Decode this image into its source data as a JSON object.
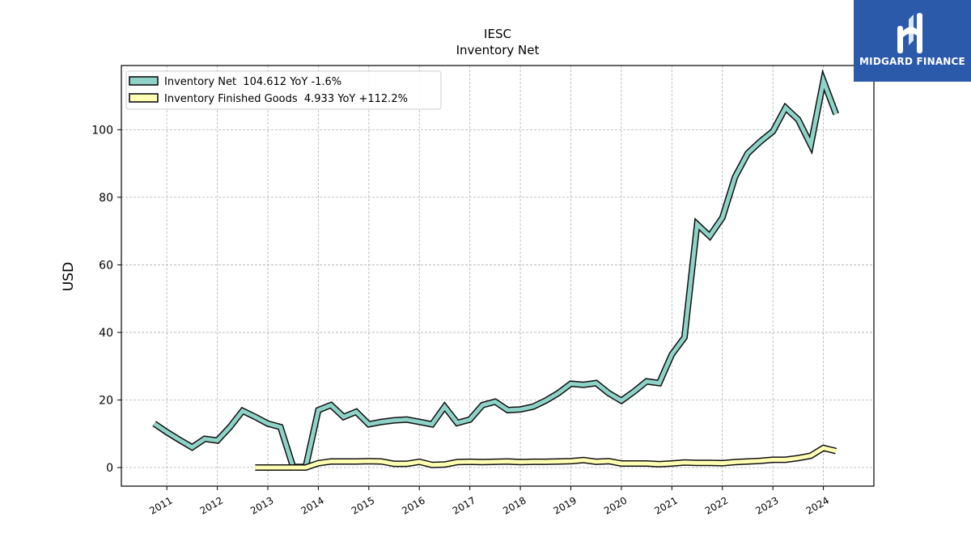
{
  "chart_data": {
    "type": "line",
    "title": "IESC",
    "subtitle": "Inventory Net",
    "ylabel": "USD",
    "xlabel": "",
    "ylim": [
      -5.5,
      119
    ],
    "xlim": [
      2010.1,
      2025.0
    ],
    "yticks": [
      0,
      20,
      40,
      60,
      80,
      100
    ],
    "xticks": [
      "2011",
      "2012",
      "2013",
      "2014",
      "2015",
      "2016",
      "2017",
      "2018",
      "2019",
      "2020",
      "2021",
      "2022",
      "2023",
      "2024"
    ],
    "grid": true,
    "legend_position": "top-left",
    "series": [
      {
        "name": "Inventory Net  104.612 YoY -1.6%",
        "color": "#8dd3c7",
        "x": [
          2010.75,
          2011.0,
          2011.25,
          2011.5,
          2011.75,
          2012.0,
          2012.25,
          2012.5,
          2012.75,
          2013.0,
          2013.25,
          2013.5,
          2013.75,
          2014.0,
          2014.25,
          2014.5,
          2014.75,
          2015.0,
          2015.25,
          2015.5,
          2015.75,
          2016.0,
          2016.25,
          2016.5,
          2016.75,
          2017.0,
          2017.25,
          2017.5,
          2017.75,
          2018.0,
          2018.25,
          2018.5,
          2018.75,
          2019.0,
          2019.25,
          2019.5,
          2019.75,
          2020.0,
          2020.25,
          2020.5,
          2020.75,
          2021.0,
          2021.25,
          2021.5,
          2021.75,
          2022.0,
          2022.25,
          2022.5,
          2022.75,
          2023.0,
          2023.25,
          2023.5,
          2023.75,
          2024.0,
          2024.25
        ],
        "values": [
          13.0,
          10.5,
          8.2,
          6.0,
          8.5,
          8.0,
          12.0,
          16.8,
          15.0,
          13.0,
          12.0,
          0.2,
          0.2,
          17.0,
          18.5,
          15.0,
          16.5,
          12.8,
          13.5,
          14.0,
          14.2,
          13.5,
          12.8,
          18.0,
          13.2,
          14.2,
          18.5,
          19.5,
          17.0,
          17.2,
          18.0,
          19.8,
          22.0,
          24.8,
          24.5,
          25.0,
          22.0,
          19.8,
          22.5,
          25.5,
          25.0,
          33.5,
          38.5,
          72.0,
          68.5,
          74.0,
          86.0,
          93.0,
          96.5,
          99.5,
          106.5,
          103.0,
          95.5,
          114.5,
          104.6
        ]
      },
      {
        "name": "Inventory Finished Goods  4.933 YoY +112.2%",
        "color": "#ffffb3",
        "x": [
          2012.75,
          2013.0,
          2013.25,
          2013.5,
          2013.75,
          2014.0,
          2014.25,
          2014.5,
          2014.75,
          2015.0,
          2015.25,
          2015.5,
          2015.75,
          2016.0,
          2016.25,
          2016.5,
          2016.75,
          2017.0,
          2017.25,
          2017.5,
          2017.75,
          2018.0,
          2018.25,
          2018.5,
          2018.75,
          2019.0,
          2019.25,
          2019.5,
          2019.75,
          2020.0,
          2020.25,
          2020.5,
          2020.75,
          2021.0,
          2021.25,
          2021.5,
          2021.75,
          2022.0,
          2022.25,
          2022.5,
          2022.75,
          2023.0,
          2023.25,
          2023.5,
          2023.75,
          2024.0,
          2024.25
        ],
        "values": [
          0.0,
          0.0,
          0.0,
          0.0,
          0.0,
          1.3,
          1.8,
          1.8,
          1.8,
          1.9,
          1.8,
          1.1,
          1.1,
          1.7,
          0.8,
          0.9,
          1.6,
          1.7,
          1.6,
          1.7,
          1.8,
          1.6,
          1.7,
          1.7,
          1.8,
          1.9,
          2.2,
          1.7,
          1.9,
          1.2,
          1.2,
          1.2,
          1.0,
          1.2,
          1.5,
          1.4,
          1.4,
          1.3,
          1.6,
          1.8,
          2.0,
          2.3,
          2.3,
          2.8,
          3.5,
          5.8,
          4.9
        ]
      }
    ]
  },
  "watermark": {
    "text": "MIDGARD FINANCE",
    "background": "#2b5aab"
  }
}
